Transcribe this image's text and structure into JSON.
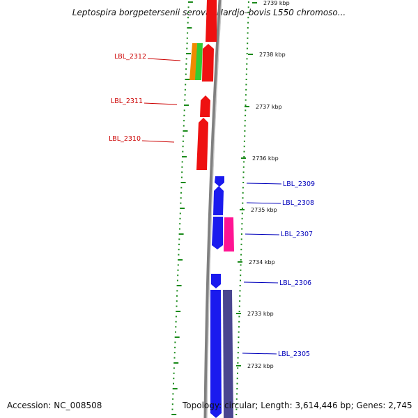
{
  "title": "Leptospira borgpetersenii serovar Hardjo–bovis L550 chromoso...",
  "footer": {
    "accession": "Accession: NC_008508",
    "summary": "Topology: circular; Length: 3,614,446 bp; Genes: 2,745"
  },
  "colors": {
    "backbone": "#808080",
    "tick_green": "#1a8a1a",
    "red_gene": "#ee1111",
    "blue_gene": "#1a1aee",
    "orange_gene": "#f08a00",
    "green_gene": "#33cc33",
    "magenta_gene": "#ff1493",
    "purple_gene": "#4a4690",
    "label_red": "#cc0000",
    "label_blue": "#0000bb"
  },
  "kbp_labels": [
    "2739 kbp",
    "2738 kbp",
    "2737 kbp",
    "2736 kbp",
    "2735 kbp",
    "2734 kbp",
    "2733 kbp",
    "2732 kbp"
  ],
  "gene_labels": [
    "LBL_2312",
    "LBL_2311",
    "LBL_2310",
    "LBL_2309",
    "LBL_2308",
    "LBL_2307",
    "LBL_2306",
    "LBL_2305"
  ]
}
